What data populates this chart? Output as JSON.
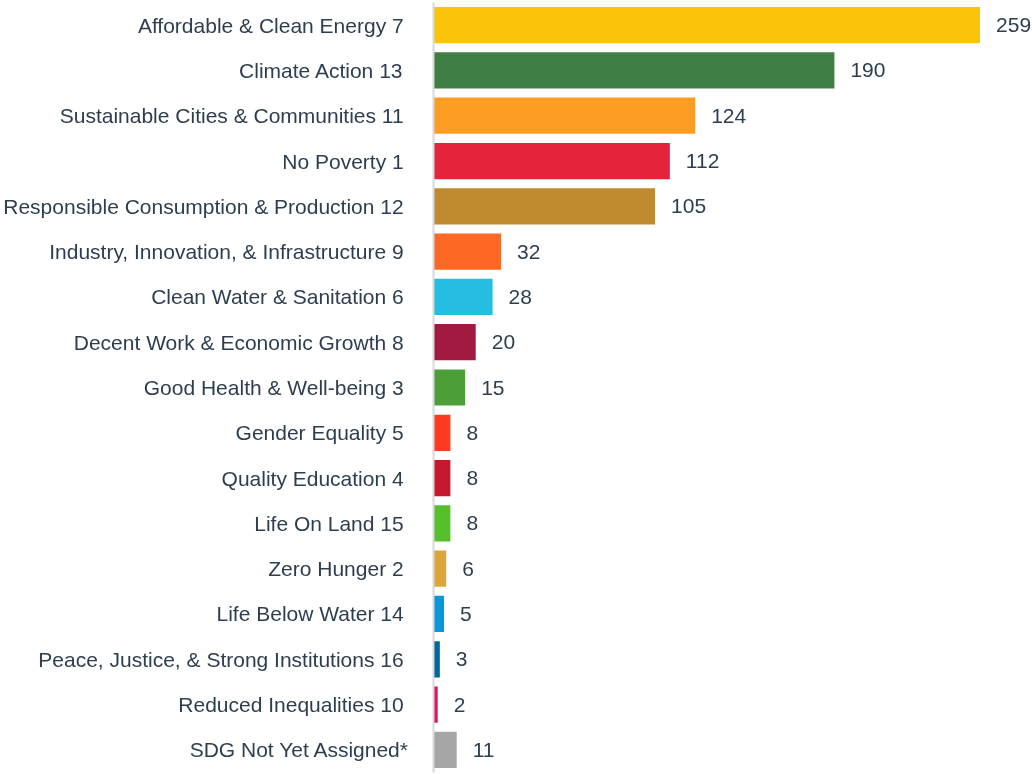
{
  "chart_data": {
    "type": "bar",
    "orientation": "horizontal",
    "categories": [
      "Affordable & Clean Energy  7",
      "Climate Action  13",
      "Sustainable Cities & Communities  11",
      "No Poverty  1",
      "Responsible Consumption & Production  12",
      "Industry, Innovation, & Infrastructure  9",
      "Clean Water & Sanitation  6",
      "Decent Work & Economic Growth  8",
      "Good Health & Well-being  3",
      "Gender Equality  5",
      "Quality Education  4",
      "Life On Land  15",
      "Zero Hunger  2",
      "Life Below Water  14",
      "Peace, Justice, & Strong Institutions  16",
      "Reduced Inequalities  10",
      "SDG Not Yet Assigned*"
    ],
    "values": [
      259,
      190,
      124,
      112,
      105,
      32,
      28,
      20,
      15,
      8,
      8,
      8,
      6,
      5,
      3,
      2,
      11
    ],
    "colors": [
      "#fcc30b",
      "#3f7e44",
      "#fd9d24",
      "#e5243b",
      "#bf8b2e",
      "#fd6925",
      "#26bde2",
      "#a21942",
      "#4c9f38",
      "#ff3a21",
      "#c5192d",
      "#56c02b",
      "#dda63a",
      "#0a97d9",
      "#00689d",
      "#dd1367",
      "#a6a6a6"
    ],
    "data_labels": true
  }
}
